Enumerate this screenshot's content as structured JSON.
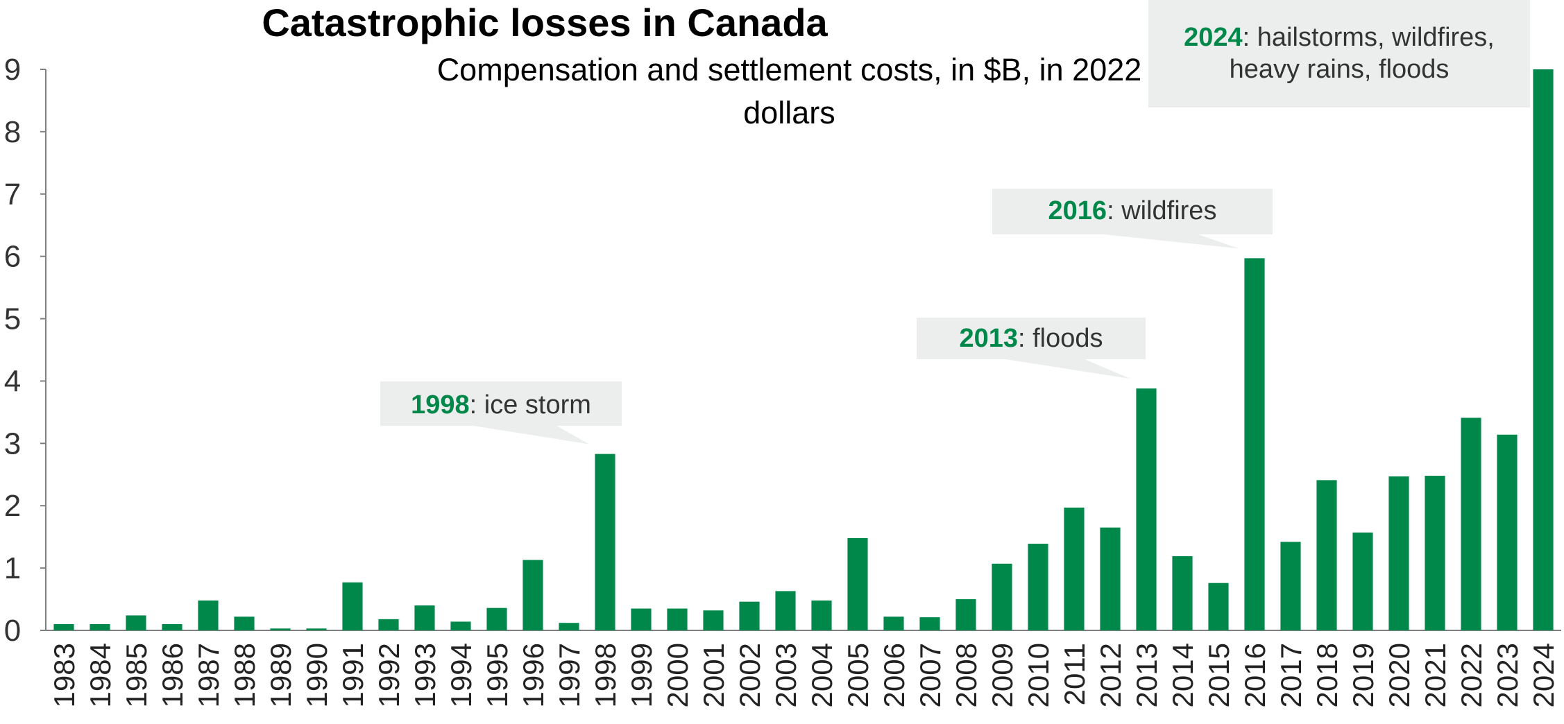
{
  "title": "Catastrophic losses in Canada",
  "subtitle": "Compensation and settlement costs, in $B, in 2022 dollars",
  "colors": {
    "bar": "#00874a",
    "callout_bg": "#eceeed",
    "year_text": "#00874a",
    "text": "#333333"
  },
  "chart_data": {
    "type": "bar",
    "title": "Catastrophic losses in Canada",
    "subtitle": "Compensation and settlement costs, in $B, in 2022 dollars",
    "xlabel": "",
    "ylabel": "",
    "ylim": [
      0,
      9
    ],
    "yticks": [
      0,
      1,
      2,
      3,
      4,
      5,
      6,
      7,
      8,
      9
    ],
    "grid": false,
    "categories": [
      "1983",
      "1984",
      "1985",
      "1986",
      "1987",
      "1988",
      "1989",
      "1990",
      "1991",
      "1992",
      "1993",
      "1994",
      "1995",
      "1996",
      "1997",
      "1998",
      "1999",
      "2000",
      "2001",
      "2002",
      "2003",
      "2004",
      "2005",
      "2006",
      "2007",
      "2008",
      "2009",
      "2010",
      "2011",
      "2012",
      "2013",
      "2014",
      "2015",
      "2016",
      "2017",
      "2018",
      "2019",
      "2020",
      "2021",
      "2022",
      "2023",
      "2024"
    ],
    "values": [
      0.1,
      0.1,
      0.24,
      0.1,
      0.48,
      0.22,
      0.03,
      0.03,
      0.77,
      0.18,
      0.4,
      0.14,
      0.36,
      1.13,
      0.12,
      2.83,
      0.35,
      0.35,
      0.32,
      0.46,
      0.63,
      0.48,
      1.48,
      0.22,
      0.21,
      0.5,
      1.07,
      1.39,
      1.97,
      1.65,
      3.88,
      1.19,
      0.76,
      5.97,
      1.42,
      2.41,
      1.57,
      2.47,
      2.48,
      3.41,
      3.14,
      9.0
    ],
    "annotations": [
      {
        "year": "1998",
        "text": ": ice storm"
      },
      {
        "year": "2013",
        "text": ": floods"
      },
      {
        "year": "2016",
        "text": ": wildfires"
      },
      {
        "year": "2024",
        "text": ": hailstorms, wildfires,",
        "text2": "heavy rains, floods"
      }
    ]
  }
}
